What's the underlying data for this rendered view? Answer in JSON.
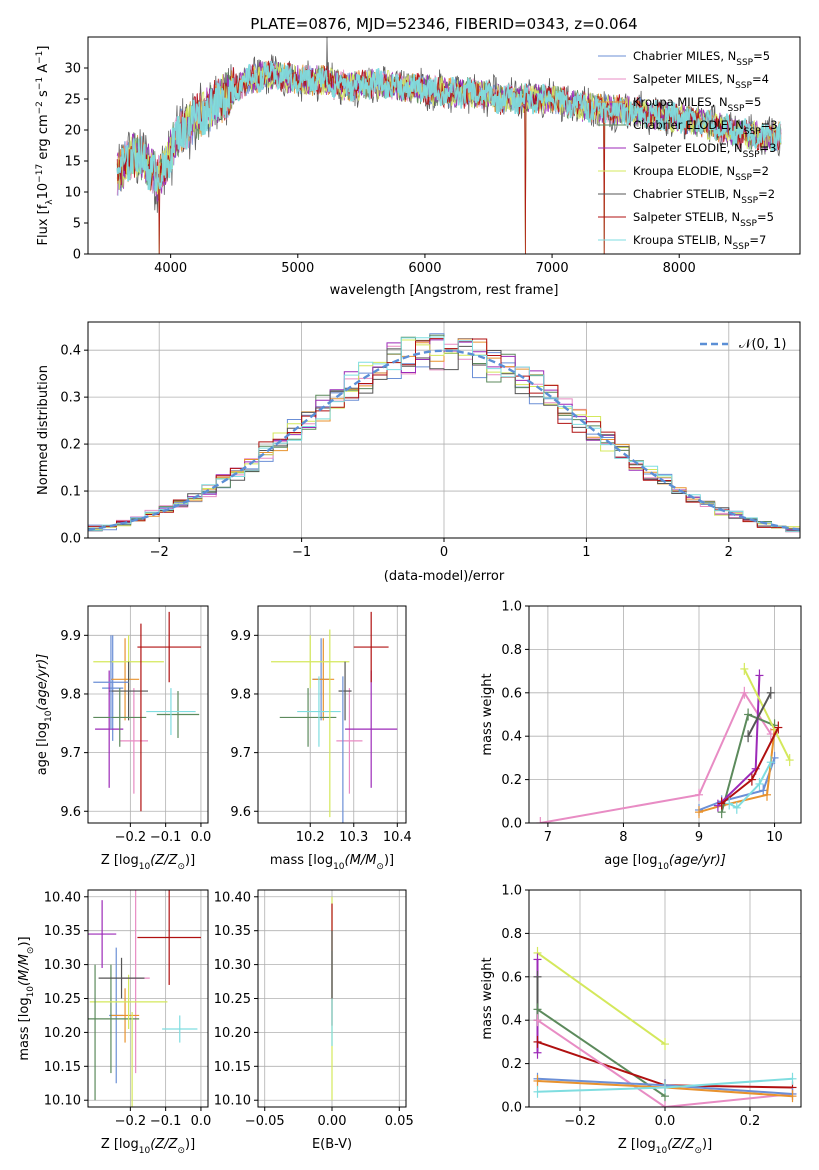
{
  "chart_data": [
    {
      "id": "spectrum",
      "type": "line",
      "title": "PLATE=0876, MJD=52346, FIBERID=0343, z=0.064",
      "xlabel": "wavelength [Angstrom, rest frame]",
      "ylabel": "Flux [f",
      "ylabel_sub": "λ",
      "ylabel_tail": "10",
      "ylabel_sup": "−17",
      "ylabel_unit": " erg cm",
      "ylabel_unit_sup": "−2",
      "ylabel_s": " s",
      "ylabel_s_sup": "−1",
      "ylabel_A": " A",
      "ylabel_A_sup": "−1",
      "ylabel_close": "]",
      "xlim": [
        3350,
        8950
      ],
      "ylim": [
        0,
        35
      ],
      "xticks": [
        4000,
        5000,
        6000,
        7000,
        8000
      ],
      "yticks": [
        0,
        5,
        10,
        15,
        20,
        25,
        30
      ],
      "grid": false,
      "legend_position": "top-right",
      "continuum_knots": [
        [
          3580,
          13
        ],
        [
          3700,
          16
        ],
        [
          3800,
          15
        ],
        [
          3900,
          12
        ],
        [
          3960,
          14
        ],
        [
          4050,
          19
        ],
        [
          4200,
          22
        ],
        [
          4400,
          25
        ],
        [
          4600,
          28
        ],
        [
          4800,
          29
        ],
        [
          5000,
          28
        ],
        [
          5200,
          28
        ],
        [
          5400,
          27
        ],
        [
          5600,
          27.5
        ],
        [
          5800,
          27
        ],
        [
          6000,
          26.5
        ],
        [
          6200,
          26
        ],
        [
          6400,
          26
        ],
        [
          6600,
          25
        ],
        [
          6800,
          25
        ],
        [
          7000,
          25
        ],
        [
          7200,
          24
        ],
        [
          7400,
          23.5
        ],
        [
          7600,
          23
        ],
        [
          7800,
          22.5
        ],
        [
          8000,
          22
        ],
        [
          8200,
          21
        ],
        [
          8400,
          20
        ],
        [
          8600,
          19
        ],
        [
          8800,
          19
        ]
      ],
      "spikes_down": [
        [
          3910,
          0
        ],
        [
          6790,
          0
        ],
        [
          7410,
          0
        ]
      ],
      "spikes_up": [
        [
          5230,
          35
        ]
      ],
      "series": [
        {
          "name": "Chabrier MILES",
          "nssp": "5",
          "color": "#6b8fd6"
        },
        {
          "name": "Salpeter MILES",
          "nssp": "4",
          "color": "#e88cc4"
        },
        {
          "name": "Kroupa MILES",
          "nssp": "5",
          "color": "#e8922e"
        },
        {
          "name": "Chabrier ELODIE",
          "nssp": "3",
          "color": "#5c8a5c"
        },
        {
          "name": "Salpeter ELODIE",
          "nssp": "3",
          "color": "#9c2ab8"
        },
        {
          "name": "Kroupa ELODIE",
          "nssp": "2",
          "color": "#d4e85c"
        },
        {
          "name": "Chabrier STELIB",
          "nssp": "2",
          "color": "#555555"
        },
        {
          "name": "Salpeter STELIB",
          "nssp": "5",
          "color": "#b01010"
        },
        {
          "name": "Kroupa STELIB",
          "nssp": "7",
          "color": "#7fdde0"
        }
      ],
      "legend_prefix": "N",
      "legend_sub": "SSP",
      "legend_eq": "="
    },
    {
      "id": "residuals",
      "type": "histogram",
      "xlabel": "(data-model)/error",
      "ylabel": "Normed distribution",
      "xlim": [
        -2.5,
        2.5
      ],
      "ylim": [
        0,
        0.46
      ],
      "xticks": [
        -2,
        -1,
        0,
        1,
        2
      ],
      "xticklabels": [
        "−2",
        "−1",
        "0",
        "1",
        "2"
      ],
      "yticks": [
        0.0,
        0.1,
        0.2,
        0.3,
        0.4
      ],
      "yticklabels": [
        "0.0",
        "0.1",
        "0.2",
        "0.3",
        "0.4"
      ],
      "grid": true,
      "bin_width": 0.1,
      "bins_from": -2.5,
      "gaussian_label": "𝒩(0, 1)",
      "gaussian_color": "#5b8fd6",
      "legend_position": "top-right"
    },
    {
      "id": "age_vs_Z",
      "type": "errorbar",
      "xlabel": "Z [log",
      "xlabel_sub": "10",
      "xlabel_tail": "(Z/Z",
      "xlabel_sun": "⊙",
      "xlabel_close": ")]",
      "ylabel": "age  [log",
      "ylabel_sub": "10",
      "ylabel_tail": "(age/yr)]",
      "xlim": [
        -0.32,
        0.02
      ],
      "ylim": [
        9.58,
        9.95
      ],
      "xticks": [
        -0.2,
        -0.1,
        0.0
      ],
      "xticklabels": [
        "−0.2",
        "−0.1",
        "0.0"
      ],
      "yticks": [
        9.6,
        9.7,
        9.8,
        9.9
      ],
      "yticklabels": [
        "9.6",
        "9.7",
        "9.8",
        "9.9"
      ],
      "grid": true,
      "points": [
        {
          "x": -0.25,
          "y": 9.81,
          "xerr": 0.03,
          "yerr": 0.09,
          "s": 0
        },
        {
          "x": -0.19,
          "y": 9.72,
          "xerr": 0.04,
          "yerr": 0.09,
          "s": 1
        },
        {
          "x": -0.215,
          "y": 9.825,
          "xerr": 0.04,
          "yerr": 0.07,
          "s": 2
        },
        {
          "x": -0.065,
          "y": 9.765,
          "xerr": 0.06,
          "yerr": 0.04,
          "s": 3
        },
        {
          "x": -0.26,
          "y": 9.74,
          "xerr": 0.04,
          "yerr": 0.1,
          "s": 4
        },
        {
          "x": -0.205,
          "y": 9.855,
          "xerr": 0.1,
          "yerr": 0.045,
          "s": 5
        },
        {
          "x": -0.205,
          "y": 9.805,
          "xerr": 0.055,
          "yerr": 0.05,
          "s": 6
        },
        {
          "x": -0.09,
          "y": 9.88,
          "xerr": 0.09,
          "yerr": 0.06,
          "s": 7
        },
        {
          "x": -0.085,
          "y": 9.77,
          "xerr": 0.07,
          "yerr": 0.04,
          "s": 8
        },
        {
          "x": -0.23,
          "y": 9.76,
          "xerr": 0.075,
          "yerr": 0.05,
          "s": 3
        },
        {
          "x": -0.17,
          "y": 9.76,
          "xerr": 0.0,
          "yerr": 0.16,
          "s": 7
        },
        {
          "x": -0.255,
          "y": 9.82,
          "xerr": 0.05,
          "yerr": 0.08,
          "s": 0
        }
      ]
    },
    {
      "id": "age_vs_mass",
      "type": "errorbar",
      "xlabel": "mass [log",
      "xlabel_sub": "10",
      "xlabel_tail": "(M/M",
      "xlabel_sun": "⊙",
      "xlabel_close": ")]",
      "xlim": [
        10.08,
        10.42
      ],
      "ylim": [
        9.58,
        9.95
      ],
      "xticks": [
        10.2,
        10.3,
        10.4
      ],
      "xticklabels": [
        "10.2",
        "10.3",
        "10.4"
      ],
      "yticks": [
        9.6,
        9.7,
        9.8,
        9.9
      ],
      "yticklabels": [
        "9.6",
        "9.7",
        "9.8",
        "9.9"
      ],
      "grid": true,
      "points": [
        {
          "x": 10.225,
          "y": 9.825,
          "xerr": 0.02,
          "yerr": 0.07,
          "s": 0
        },
        {
          "x": 10.29,
          "y": 9.72,
          "xerr": 0.03,
          "yerr": 0.09,
          "s": 1
        },
        {
          "x": 10.23,
          "y": 9.825,
          "xerr": 0.025,
          "yerr": 0.07,
          "s": 2
        },
        {
          "x": 10.195,
          "y": 9.76,
          "xerr": 0.065,
          "yerr": 0.05,
          "s": 3
        },
        {
          "x": 10.34,
          "y": 9.74,
          "xerr": 0.06,
          "yerr": 0.1,
          "s": 4
        },
        {
          "x": 10.2,
          "y": 9.855,
          "xerr": 0.09,
          "yerr": 0.045,
          "s": 5
        },
        {
          "x": 10.28,
          "y": 9.805,
          "xerr": 0.015,
          "yerr": 0.05,
          "s": 6
        },
        {
          "x": 10.34,
          "y": 9.88,
          "xerr": 0.04,
          "yerr": 0.06,
          "s": 7
        },
        {
          "x": 10.22,
          "y": 9.77,
          "xerr": 0.05,
          "yerr": 0.06,
          "s": 8
        },
        {
          "x": 10.245,
          "y": 9.75,
          "xerr": 0.0,
          "yerr": 0.16,
          "s": 5
        },
        {
          "x": 10.275,
          "y": 9.7,
          "xerr": 0.0,
          "yerr": 0.13,
          "s": 0
        }
      ]
    },
    {
      "id": "weight_vs_age",
      "type": "line",
      "xlabel": "age  [log",
      "xlabel_sub": "10",
      "xlabel_tail": "(age/yr)]",
      "ylabel": "mass weight",
      "xlim": [
        6.75,
        10.35
      ],
      "ylim": [
        0,
        1.0
      ],
      "xticks": [
        7,
        8,
        9,
        10
      ],
      "xticklabels": [
        "7",
        "8",
        "9",
        "10"
      ],
      "yticks": [
        0.0,
        0.2,
        0.4,
        0.6,
        0.8,
        1.0
      ],
      "yticklabels": [
        "0.0",
        "0.2",
        "0.4",
        "0.6",
        "0.8",
        "1.0"
      ],
      "grid": true,
      "lines": [
        {
          "s": 1,
          "pts": [
            [
              6.9,
              0.0
            ],
            [
              9.0,
              0.13
            ],
            [
              9.6,
              0.6
            ],
            [
              9.95,
              0.41
            ]
          ]
        },
        {
          "s": 0,
          "pts": [
            [
              9.0,
              0.06
            ],
            [
              9.3,
              0.1
            ],
            [
              9.85,
              0.15
            ],
            [
              10.0,
              0.3
            ]
          ]
        },
        {
          "s": 2,
          "pts": [
            [
              9.0,
              0.05
            ],
            [
              9.3,
              0.08
            ],
            [
              9.9,
              0.13
            ],
            [
              10.0,
              0.43
            ]
          ]
        },
        {
          "s": 3,
          "pts": [
            [
              9.3,
              0.05
            ],
            [
              9.65,
              0.5
            ],
            [
              10.0,
              0.45
            ]
          ]
        },
        {
          "s": 4,
          "pts": [
            [
              9.25,
              0.08
            ],
            [
              9.75,
              0.25
            ],
            [
              9.8,
              0.68
            ]
          ]
        },
        {
          "s": 5,
          "pts": [
            [
              9.6,
              0.71
            ],
            [
              10.2,
              0.29
            ]
          ]
        },
        {
          "s": 6,
          "pts": [
            [
              9.65,
              0.4
            ],
            [
              9.95,
              0.6
            ]
          ]
        },
        {
          "s": 7,
          "pts": [
            [
              9.3,
              0.09
            ],
            [
              9.7,
              0.2
            ],
            [
              10.05,
              0.44
            ]
          ]
        },
        {
          "s": 8,
          "pts": [
            [
              9.4,
              0.09
            ],
            [
              9.5,
              0.07
            ],
            [
              9.8,
              0.18
            ],
            [
              9.95,
              0.28
            ]
          ]
        }
      ]
    },
    {
      "id": "mass_vs_Z",
      "type": "errorbar",
      "xlabel": "Z [log",
      "xlabel_sub": "10",
      "xlabel_tail": "(Z/Z",
      "xlabel_sun": "⊙",
      "xlabel_close": ")]",
      "ylabel": "mass [log",
      "ylabel_sub": "10",
      "ylabel_tail": "(M/M",
      "ylabel_sun": "⊙",
      "ylabel_close": ")]",
      "xlim": [
        -0.32,
        0.02
      ],
      "ylim": [
        10.09,
        10.41
      ],
      "xticks": [
        -0.2,
        -0.1,
        0.0
      ],
      "xticklabels": [
        "−0.2",
        "−0.1",
        "0.0"
      ],
      "yticks": [
        10.1,
        10.15,
        10.2,
        10.25,
        10.3,
        10.35,
        10.4
      ],
      "yticklabels": [
        "10.10",
        "10.15",
        "10.20",
        "10.25",
        "10.30",
        "10.35",
        "10.40"
      ],
      "grid": true,
      "points": [
        {
          "x": -0.24,
          "y": 10.225,
          "xerr": 0.02,
          "yerr": 0.1,
          "s": 0
        },
        {
          "x": -0.185,
          "y": 10.28,
          "xerr": 0.04,
          "yerr": 0.14,
          "s": 1
        },
        {
          "x": -0.215,
          "y": 10.225,
          "xerr": 0.04,
          "yerr": 0.04,
          "s": 2
        },
        {
          "x": -0.255,
          "y": 10.22,
          "xerr": 0.08,
          "yerr": 0.08,
          "s": 3
        },
        {
          "x": -0.28,
          "y": 10.345,
          "xerr": 0.04,
          "yerr": 0.05,
          "s": 4
        },
        {
          "x": -0.205,
          "y": 10.245,
          "xerr": 0.11,
          "yerr": 0.04,
          "s": 5
        },
        {
          "x": -0.225,
          "y": 10.28,
          "xerr": 0.065,
          "yerr": 0.03,
          "s": 6
        },
        {
          "x": -0.09,
          "y": 10.34,
          "xerr": 0.09,
          "yerr": 0.07,
          "s": 7
        },
        {
          "x": -0.06,
          "y": 10.205,
          "xerr": 0.05,
          "yerr": 0.02,
          "s": 8
        },
        {
          "x": -0.3,
          "y": 10.2,
          "xerr": 0.0,
          "yerr": 0.1,
          "s": 3
        },
        {
          "x": -0.195,
          "y": 10.16,
          "xerr": 0.0,
          "yerr": 0.07,
          "s": 5
        }
      ]
    },
    {
      "id": "mass_vs_ebv",
      "type": "errorbar",
      "xlabel": "E(B-V)",
      "xlim": [
        -0.055,
        0.055
      ],
      "ylim": [
        10.09,
        10.41
      ],
      "xticks": [
        -0.05,
        0.0,
        0.05
      ],
      "xticklabels": [
        "−0.05",
        "0.00",
        "0.05"
      ],
      "yticks": [
        10.1,
        10.15,
        10.2,
        10.25,
        10.3,
        10.35,
        10.4
      ],
      "yticklabels": [
        "10.10",
        "10.15",
        "10.20",
        "10.25",
        "10.30",
        "10.35",
        "10.40"
      ],
      "grid": true,
      "points": [
        {
          "x": 0.0,
          "y": 10.25,
          "xerr": 0.0,
          "yerr": 0.15,
          "s": 5
        },
        {
          "x": 0.0,
          "y": 10.3,
          "xerr": 0.0,
          "yerr": 0.09,
          "s": 7
        },
        {
          "x": 0.0,
          "y": 10.25,
          "xerr": 0.0,
          "yerr": 0.07,
          "s": 8
        },
        {
          "x": 0.0,
          "y": 10.3,
          "xerr": 0.0,
          "yerr": 0.05,
          "s": 6
        }
      ]
    },
    {
      "id": "weight_vs_Z",
      "type": "line",
      "xlabel": "Z [log",
      "xlabel_sub": "10",
      "xlabel_tail": "(Z/Z",
      "xlabel_sun": "⊙",
      "xlabel_close": ")]",
      "ylabel": "mass weight",
      "xlim": [
        -0.32,
        0.32
      ],
      "ylim": [
        0,
        1.0
      ],
      "xticks": [
        -0.2,
        0.0,
        0.2
      ],
      "xticklabels": [
        "−0.2",
        "0.0",
        "0.2"
      ],
      "yticks": [
        0.0,
        0.2,
        0.4,
        0.6,
        0.8,
        1.0
      ],
      "yticklabels": [
        "0.0",
        "0.2",
        "0.4",
        "0.6",
        "0.8",
        "1.0"
      ],
      "grid": true,
      "lines": [
        {
          "s": 5,
          "pts": [
            [
              -0.3,
              0.71
            ],
            [
              0.0,
              0.29
            ]
          ]
        },
        {
          "s": 4,
          "pts": [
            [
              -0.3,
              0.68
            ],
            [
              -0.3,
              0.25
            ]
          ]
        },
        {
          "s": 6,
          "pts": [
            [
              -0.3,
              0.6
            ],
            [
              -0.3,
              0.4
            ]
          ]
        },
        {
          "s": 3,
          "pts": [
            [
              -0.3,
              0.45
            ],
            [
              0.0,
              0.05
            ]
          ]
        },
        {
          "s": 7,
          "pts": [
            [
              -0.3,
              0.3
            ],
            [
              0.0,
              0.1
            ],
            [
              0.3,
              0.09
            ]
          ]
        },
        {
          "s": 1,
          "pts": [
            [
              -0.3,
              0.4
            ],
            [
              0.0,
              0.0
            ],
            [
              0.3,
              0.06
            ]
          ]
        },
        {
          "s": 0,
          "pts": [
            [
              -0.3,
              0.13
            ],
            [
              0.0,
              0.1
            ],
            [
              0.3,
              0.06
            ]
          ]
        },
        {
          "s": 2,
          "pts": [
            [
              -0.3,
              0.12
            ],
            [
              0.0,
              0.09
            ],
            [
              0.3,
              0.05
            ]
          ]
        },
        {
          "s": 8,
          "pts": [
            [
              -0.3,
              0.07
            ],
            [
              0.0,
              0.09
            ],
            [
              0.3,
              0.13
            ]
          ]
        }
      ]
    }
  ]
}
